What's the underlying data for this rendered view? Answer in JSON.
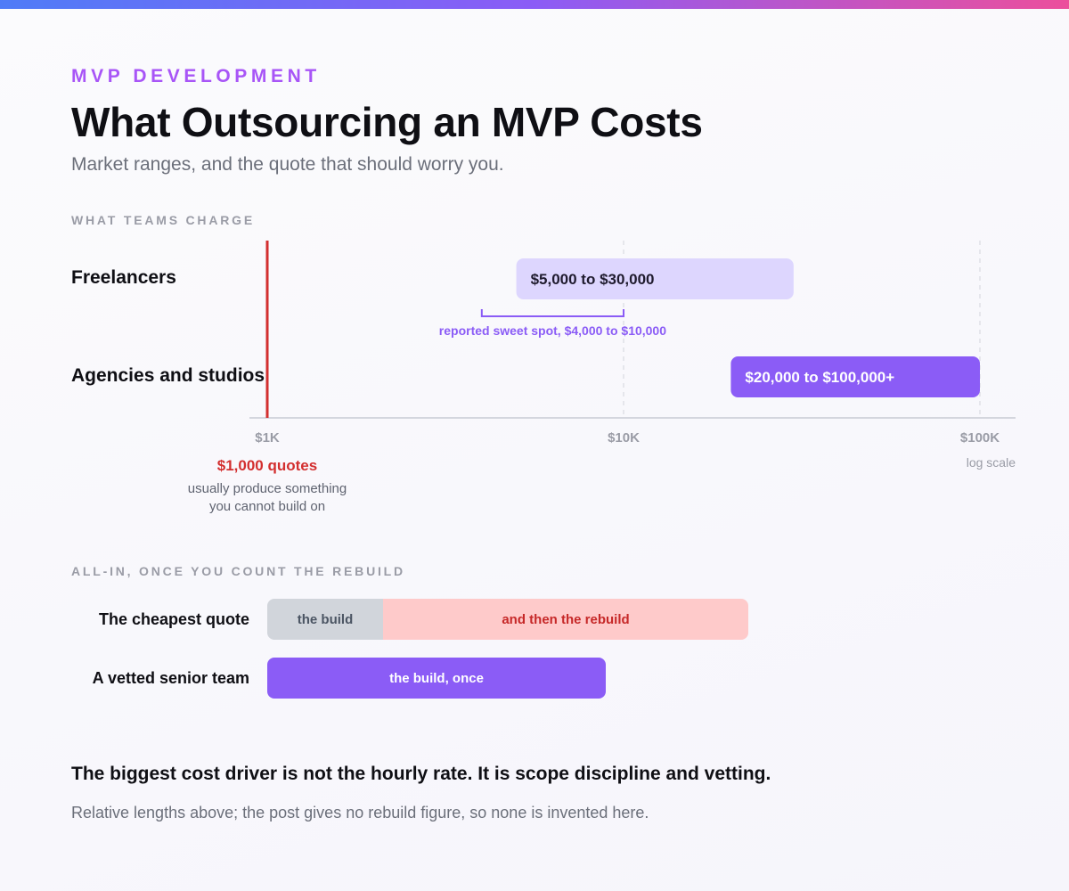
{
  "header": {
    "kicker": "MVP DEVELOPMENT",
    "title": "What Outsourcing an MVP Costs",
    "subtitle": "Market ranges, and the quote that should worry you."
  },
  "colors": {
    "accent": "#8b5cf6",
    "freelancer_bar": "#ddd6fe",
    "warning_red": "#d32f2f",
    "rebuild_pink": "#fecaca",
    "build_grey": "#d1d5db"
  },
  "range_section": {
    "heading": "WHAT TEAMS CHARGE",
    "scale_note": "log scale",
    "callout": {
      "headline": "$1,000 quotes",
      "line1": "usually produce something",
      "line2": "you cannot build on"
    }
  },
  "chart_data": {
    "type": "bar",
    "orientation": "horizontal-range",
    "x_scale": "log",
    "xlim": [
      1000,
      100000
    ],
    "x_ticks": [
      {
        "value": 1000,
        "label": "$1K"
      },
      {
        "value": 10000,
        "label": "$10K"
      },
      {
        "value": 100000,
        "label": "$100K"
      }
    ],
    "grid": "dashed verticals at $10K and $100K",
    "series": [
      {
        "category": "Freelancers",
        "min": 5000,
        "max": 30000,
        "label": "$5,000 to $30,000",
        "color": "#ddd6fe",
        "text_color": "#1f1b2e"
      },
      {
        "category": "Agencies and studios",
        "min": 20000,
        "max": 100000,
        "label": "$20,000 to $100,000+",
        "color": "#8b5cf6",
        "text_color": "#ffffff"
      }
    ],
    "annotations": [
      {
        "type": "bracket",
        "category": "Freelancers",
        "min": 4000,
        "max": 10000,
        "label": "reported sweet spot, $4,000 to $10,000",
        "color": "#8b5cf6"
      },
      {
        "type": "reference-line",
        "value": 1000,
        "color": "#d32f2f"
      }
    ]
  },
  "comparison": {
    "heading": "ALL-IN, ONCE YOU COUNT THE REBUILD",
    "rows": [
      {
        "label": "The cheapest quote",
        "segments": [
          {
            "label": "the build",
            "relative_length": 130
          },
          {
            "label": "and then the rebuild",
            "relative_length": 410
          }
        ]
      },
      {
        "label": "A vetted senior team",
        "segments": [
          {
            "label": "the build, once",
            "relative_length": 380
          }
        ]
      }
    ]
  },
  "conclusion": "The biggest cost driver is not the hourly rate. It is scope discipline and vetting.",
  "footnote": "Relative lengths above; the post gives no rebuild figure, so none is invented here."
}
